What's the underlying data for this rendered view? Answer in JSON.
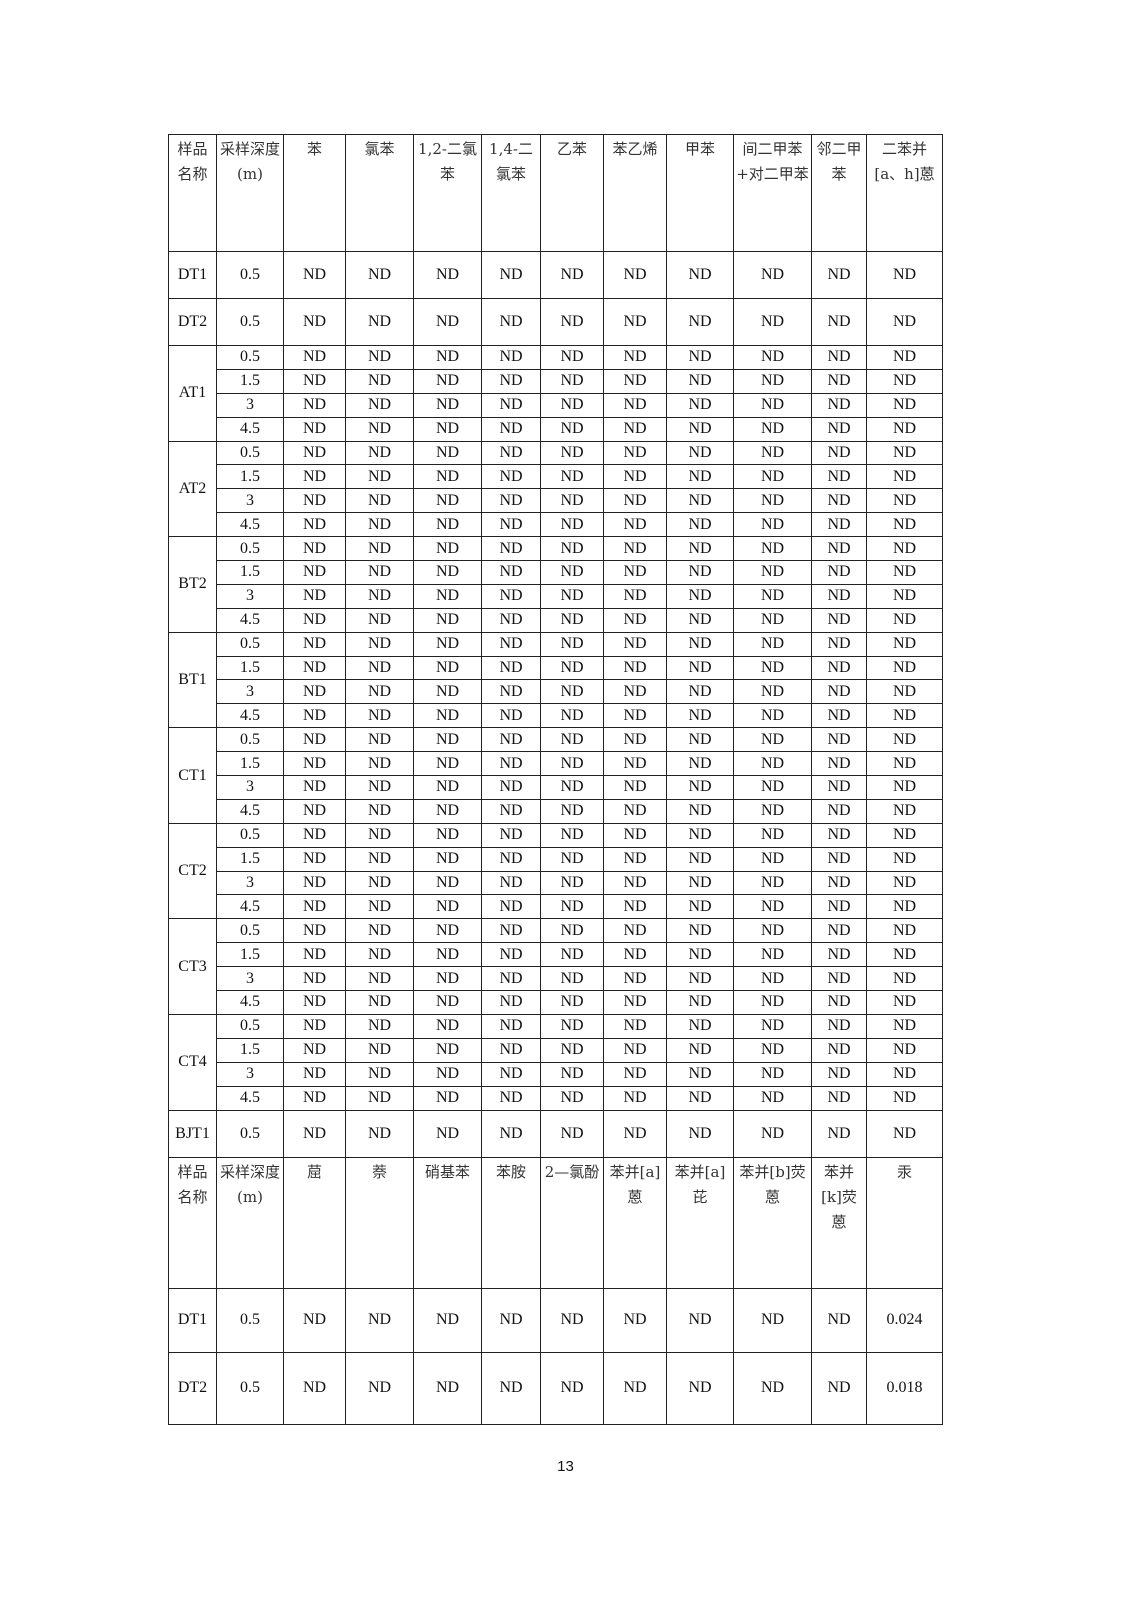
{
  "table": {
    "header1": [
      "样品名称",
      "采样深度(m)",
      "苯",
      "氯苯",
      "1,2-二氯苯",
      "1,4-二氯苯",
      "乙苯",
      "苯乙烯",
      "甲苯",
      "间二甲苯+对二甲苯",
      "邻二甲苯",
      "二苯并[a、h]蒽"
    ],
    "single_rows_1": [
      {
        "sample": "DT1",
        "depth": "0.5",
        "values": [
          "ND",
          "ND",
          "ND",
          "ND",
          "ND",
          "ND",
          "ND",
          "ND",
          "ND",
          "ND"
        ]
      },
      {
        "sample": "DT2",
        "depth": "0.5",
        "values": [
          "ND",
          "ND",
          "ND",
          "ND",
          "ND",
          "ND",
          "ND",
          "ND",
          "ND",
          "ND"
        ]
      }
    ],
    "groups": [
      {
        "sample": "AT1",
        "depths": [
          "0.5",
          "1.5",
          "3",
          "4.5"
        ]
      },
      {
        "sample": "AT2",
        "depths": [
          "0.5",
          "1.5",
          "3",
          "4.5"
        ]
      },
      {
        "sample": "BT2",
        "depths": [
          "0.5",
          "1.5",
          "3",
          "4.5"
        ]
      },
      {
        "sample": "BT1",
        "depths": [
          "0.5",
          "1.5",
          "3",
          "4.5"
        ]
      },
      {
        "sample": "CT1",
        "depths": [
          "0.5",
          "1.5",
          "3",
          "4.5"
        ]
      },
      {
        "sample": "CT2",
        "depths": [
          "0.5",
          "1.5",
          "3",
          "4.5"
        ]
      },
      {
        "sample": "CT3",
        "depths": [
          "0.5",
          "1.5",
          "3",
          "4.5"
        ]
      },
      {
        "sample": "CT4",
        "depths": [
          "0.5",
          "1.5",
          "3",
          "4.5"
        ]
      }
    ],
    "group_value": "ND",
    "single_rows_2": [
      {
        "sample": "BJT1",
        "depth": "0.5",
        "values": [
          "ND",
          "ND",
          "ND",
          "ND",
          "ND",
          "ND",
          "ND",
          "ND",
          "ND",
          "ND"
        ]
      }
    ],
    "header2": [
      "样品名称",
      "采样深度(m)",
      "䓛",
      "萘",
      "硝基苯",
      "苯胺",
      "2—氯酚",
      "苯并[a]蒽",
      "苯并[a]芘",
      "苯并[b]荧蒽",
      "苯并[k]荧蒽",
      "汞"
    ],
    "single_rows_3": [
      {
        "sample": "DT1",
        "depth": "0.5",
        "values": [
          "ND",
          "ND",
          "ND",
          "ND",
          "ND",
          "ND",
          "ND",
          "ND",
          "ND",
          "0.024"
        ]
      },
      {
        "sample": "DT2",
        "depth": "0.5",
        "values": [
          "ND",
          "ND",
          "ND",
          "ND",
          "ND",
          "ND",
          "ND",
          "ND",
          "ND",
          "0.018"
        ]
      }
    ]
  },
  "page_number": "13"
}
